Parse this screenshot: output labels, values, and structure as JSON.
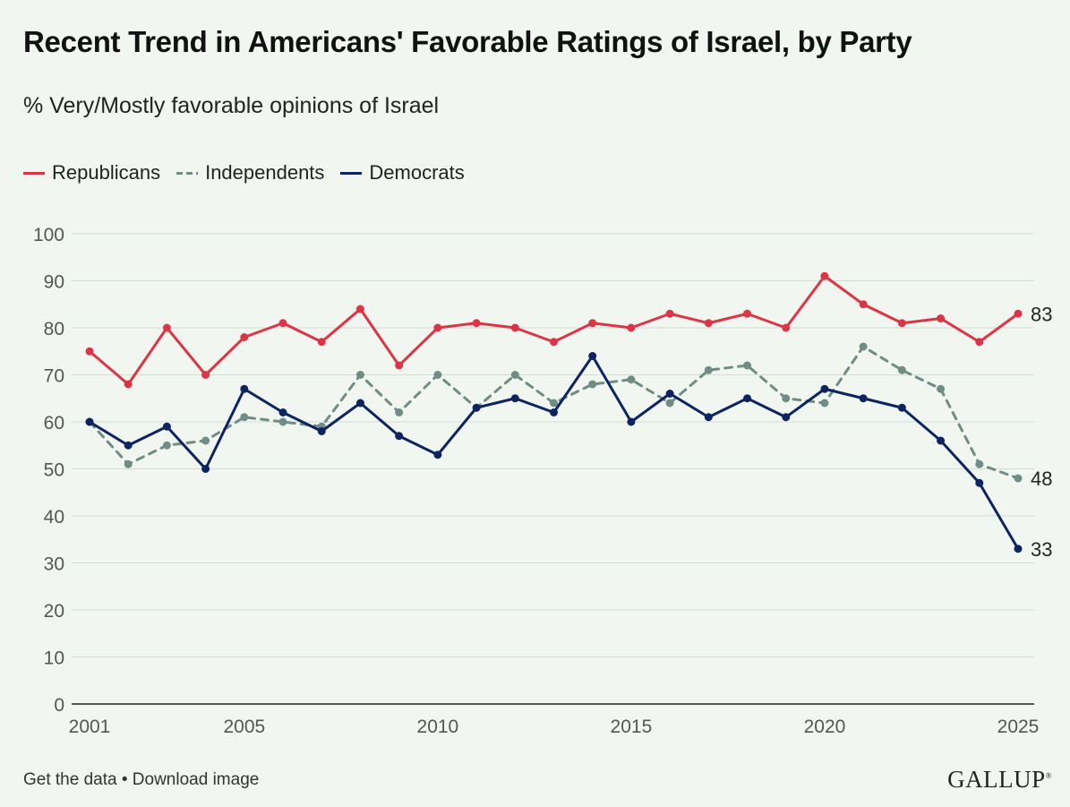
{
  "title": "Recent Trend in Americans' Favorable Ratings of Israel, by Party",
  "subtitle": "% Very/Mostly favorable opinions of Israel",
  "footer": {
    "get_data": "Get the data",
    "separator": "•",
    "download": "Download image"
  },
  "brand": "GALLUP",
  "brand_mark": "®",
  "chart_data": {
    "type": "line",
    "title": "Recent Trend in Americans' Favorable Ratings of Israel, by Party",
    "subtitle": "% Very/Mostly favorable opinions of Israel",
    "xlabel": "",
    "ylabel": "",
    "xlim": [
      2001,
      2025
    ],
    "ylim": [
      0,
      100
    ],
    "yticks": [
      0,
      10,
      20,
      30,
      40,
      50,
      60,
      70,
      80,
      90,
      100
    ],
    "xticks": [
      2001,
      2005,
      2010,
      2015,
      2020,
      2025
    ],
    "grid": true,
    "legend_position": "top-left",
    "x": [
      2001,
      2002,
      2003,
      2004,
      2005,
      2006,
      2007,
      2008,
      2009,
      2010,
      2011,
      2012,
      2013,
      2014,
      2015,
      2016,
      2017,
      2018,
      2019,
      2020,
      2021,
      2022,
      2023,
      2024,
      2025
    ],
    "series": [
      {
        "name": "Republicans",
        "color": "#dc3545",
        "style": "solid",
        "end_label": "83",
        "values": [
          75,
          68,
          80,
          70,
          78,
          81,
          77,
          84,
          72,
          80,
          81,
          80,
          77,
          81,
          80,
          83,
          81,
          83,
          80,
          91,
          85,
          81,
          82,
          77,
          83
        ]
      },
      {
        "name": "Independents",
        "color": "#6e8d86",
        "style": "dashed",
        "end_label": "48",
        "values": [
          60,
          51,
          55,
          56,
          61,
          60,
          59,
          70,
          62,
          70,
          63,
          70,
          64,
          68,
          69,
          64,
          71,
          72,
          65,
          64,
          76,
          71,
          67,
          51,
          48
        ]
      },
      {
        "name": "Democrats",
        "color": "#0c2461",
        "style": "solid",
        "end_label": "33",
        "values": [
          60,
          55,
          59,
          50,
          67,
          62,
          58,
          64,
          57,
          53,
          63,
          65,
          62,
          74,
          60,
          66,
          61,
          65,
          61,
          67,
          65,
          63,
          56,
          47,
          33
        ]
      }
    ]
  }
}
